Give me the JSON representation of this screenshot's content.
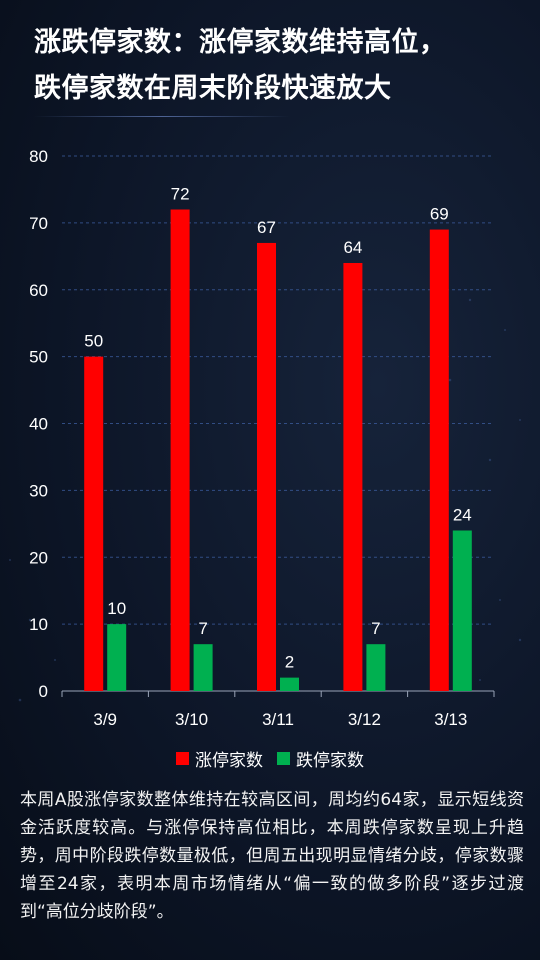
{
  "title": {
    "line1": "涨跌停家数：涨停家数维持高位，",
    "line2": "跌停家数在周末阶段快速放大"
  },
  "colors": {
    "limit_up": "#ff0000",
    "limit_down": "#00b050",
    "background": "#0d1628",
    "grid": "#3a5a9a"
  },
  "chart_data": {
    "type": "bar",
    "categories": [
      "3/9",
      "3/10",
      "3/11",
      "3/12",
      "3/13"
    ],
    "series": [
      {
        "name": "涨停家数",
        "values": [
          50,
          72,
          67,
          64,
          69
        ]
      },
      {
        "name": "跌停家数",
        "values": [
          10,
          7,
          2,
          7,
          24
        ]
      }
    ],
    "ylim": [
      0,
      80
    ],
    "yticks": [
      0,
      10,
      20,
      30,
      40,
      50,
      60,
      70,
      80
    ],
    "grid": true,
    "legend_position": "bottom",
    "data_labels": true
  },
  "legend": {
    "limit_up_label": "涨停家数",
    "limit_down_label": "跌停家数"
  },
  "description": "本周A股涨停家数整体维持在较高区间，周均约64家，显示短线资金活跃度较高。与涨停保持高位相比，本周跌停家数呈现上升趋势，周中阶段跌停数量极低，但周五出现明显情绪分歧，停家数骤增至24家，表明本周市场情绪从“偏一致的做多阶段”逐步过渡到“高位分歧阶段”。"
}
